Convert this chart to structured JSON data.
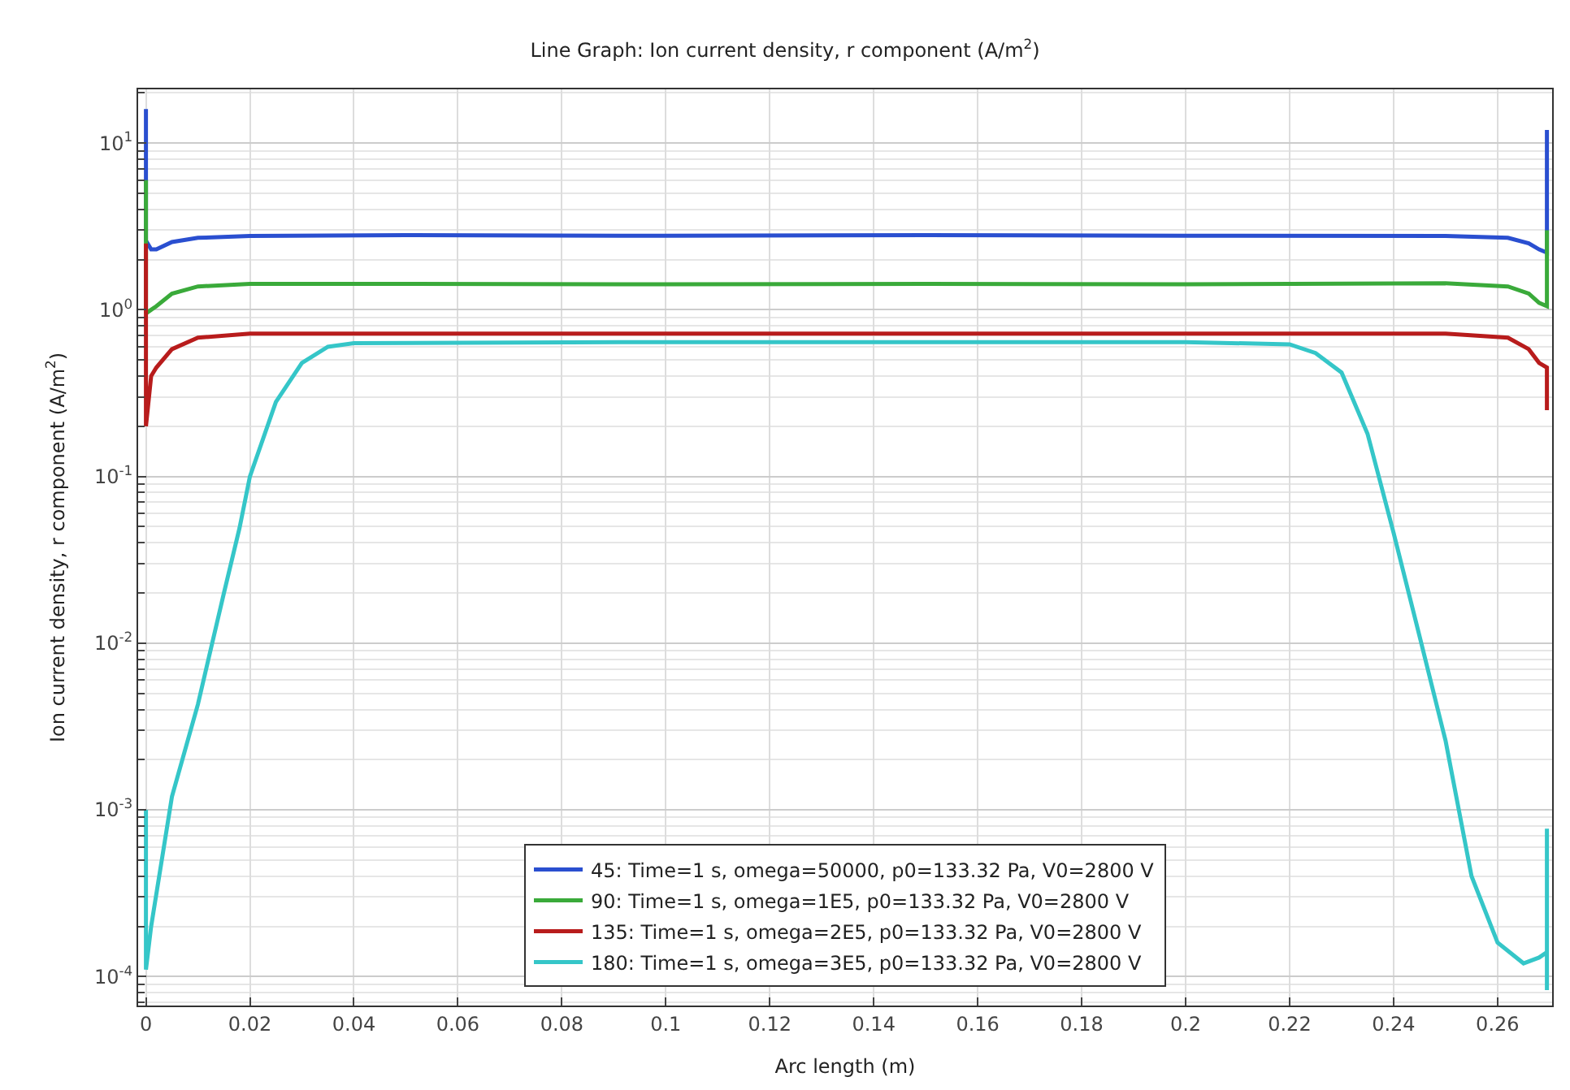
{
  "chart_data": {
    "type": "line",
    "title": "Line Graph: Ion current density, r component (A/m$^{2}$)",
    "xlabel": "Arc length (m)",
    "ylabel": "Ion current density, r component (A/m$^{2}$)",
    "log": "y",
    "grid": true,
    "legend": "bottom",
    "marker": "none",
    "line_style": "solid",
    "xlim": [
      -0.0015,
      0.2705
    ],
    "ylim": [
      6.7e-05,
      21
    ],
    "xticks": [
      0,
      0.02,
      0.04,
      0.06,
      0.08,
      0.1,
      0.12,
      0.14,
      0.16,
      0.18,
      0.2,
      0.22,
      0.24,
      0.26
    ],
    "yticks": [
      {
        "value": 0.0001,
        "label": "10$^{-4}$"
      },
      {
        "value": 0.001,
        "label": "10$^{-3}$"
      },
      {
        "value": 0.01,
        "label": "10$^{-2}$"
      },
      {
        "value": 0.1,
        "label": "10$^{-1}$"
      },
      {
        "value": 1,
        "label": "10$^{0}$"
      },
      {
        "value": 10,
        "label": "10$^{1}$"
      }
    ],
    "series": [
      {
        "name": "45: Time=1 s, omega=50000, p0=133.32 Pa, V0=2800 V",
        "color": "#2a4fd0",
        "x": [
          0,
          0,
          0.001,
          0.002,
          0.005,
          0.01,
          0.02,
          0.05,
          0.1,
          0.15,
          0.2,
          0.25,
          0.262,
          0.266,
          0.268,
          0.2695,
          0.2695
        ],
        "values": [
          16,
          2.6,
          2.3,
          2.3,
          2.55,
          2.7,
          2.77,
          2.8,
          2.78,
          2.8,
          2.78,
          2.77,
          2.7,
          2.5,
          2.3,
          2.2,
          12
        ]
      },
      {
        "name": "90: Time=1 s, omega=1E5, p0=133.32 Pa, V0=2800 V",
        "color": "#3aaa3a",
        "x": [
          0,
          0,
          0.001,
          0.002,
          0.005,
          0.01,
          0.02,
          0.05,
          0.1,
          0.15,
          0.2,
          0.25,
          0.262,
          0.266,
          0.268,
          0.2695,
          0.2695
        ],
        "values": [
          6,
          0.95,
          1.0,
          1.05,
          1.25,
          1.38,
          1.43,
          1.43,
          1.42,
          1.43,
          1.42,
          1.44,
          1.38,
          1.25,
          1.1,
          1.05,
          3
        ]
      },
      {
        "name": "135: Time=1 s, omega=2E5, p0=133.32 Pa, V0=2800 V",
        "color": "#b81c1c",
        "x": [
          0,
          0,
          0.001,
          0.002,
          0.005,
          0.01,
          0.02,
          0.05,
          0.1,
          0.15,
          0.2,
          0.25,
          0.262,
          0.266,
          0.268,
          0.2695,
          0.2695
        ],
        "values": [
          2.5,
          0.2,
          0.4,
          0.45,
          0.58,
          0.68,
          0.72,
          0.72,
          0.72,
          0.72,
          0.72,
          0.72,
          0.68,
          0.58,
          0.48,
          0.45,
          0.25
        ]
      },
      {
        "name": "180: Time=1 s, omega=3E5, p0=133.32 Pa, V0=2800 V",
        "color": "#35c6c8",
        "x": [
          0,
          0,
          0.001,
          0.005,
          0.01,
          0.015,
          0.018,
          0.02,
          0.025,
          0.03,
          0.035,
          0.04,
          0.1,
          0.2,
          0.22,
          0.225,
          0.23,
          0.235,
          0.24,
          0.245,
          0.25,
          0.255,
          0.26,
          0.265,
          0.268,
          0.2695,
          0.2695,
          0.2695
        ],
        "values": [
          0.001,
          0.00011,
          0.0002,
          0.0012,
          0.0043,
          0.02,
          0.049,
          0.1,
          0.28,
          0.48,
          0.6,
          0.63,
          0.64,
          0.64,
          0.62,
          0.55,
          0.42,
          0.18,
          0.046,
          0.011,
          0.0026,
          0.0004,
          0.00016,
          0.00012,
          0.00013,
          0.00014,
          0.00077,
          8.3e-05
        ]
      }
    ]
  }
}
